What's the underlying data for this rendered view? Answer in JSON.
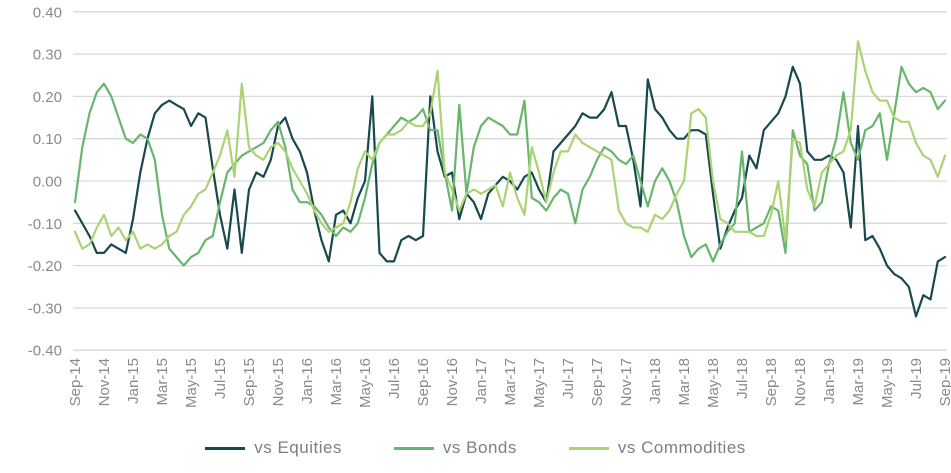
{
  "chart_data": {
    "type": "line",
    "title": "",
    "grid": "horizontal",
    "background": "#ffffff",
    "gridline_color": "#d9d9d9",
    "axis_text_color": "#8a8a8a",
    "legend_text_color": "#7f7f7f",
    "legend_position": "bottom",
    "y_axis": {
      "min": -0.4,
      "max": 0.4,
      "step": 0.1,
      "tick_labels": [
        "0.40",
        "0.30",
        "0.20",
        "0.10",
        "0.00",
        "-0.10",
        "-0.20",
        "-0.30",
        "-0.40"
      ]
    },
    "x_axis": {
      "unit": "month",
      "tick_interval_months": 2,
      "tick_labels": [
        "Sep-14",
        "Nov-14",
        "Jan-15",
        "Mar-15",
        "May-15",
        "Jul-15",
        "Sep-15",
        "Nov-15",
        "Jan-16",
        "Mar-16",
        "May-16",
        "Jul-16",
        "Sep-16",
        "Nov-16",
        "Jan-17",
        "Mar-17",
        "May-17",
        "Jul-17",
        "Sep-17",
        "Nov-17",
        "Jan-18",
        "Mar-18",
        "May-18",
        "Jul-18",
        "Sep-18",
        "Nov-18",
        "Jan-19",
        "Mar-19",
        "May-19",
        "Jul-19",
        "Sep-19"
      ]
    },
    "x_step_months": 0.5,
    "x_start_label": "Sep-14",
    "series": [
      {
        "name": "vs Equities",
        "color": "#17494d",
        "values": [
          -0.07,
          -0.1,
          -0.13,
          -0.17,
          -0.17,
          -0.15,
          -0.16,
          -0.17,
          -0.09,
          0.02,
          0.1,
          0.16,
          0.18,
          0.19,
          0.18,
          0.17,
          0.13,
          0.16,
          0.15,
          0.03,
          -0.08,
          -0.16,
          -0.02,
          -0.17,
          -0.02,
          0.02,
          0.01,
          0.05,
          0.13,
          0.15,
          0.1,
          0.07,
          0.02,
          -0.07,
          -0.14,
          -0.19,
          -0.08,
          -0.07,
          -0.1,
          -0.04,
          0.0,
          0.2,
          -0.17,
          -0.19,
          -0.19,
          -0.14,
          -0.13,
          -0.14,
          -0.13,
          0.2,
          0.07,
          0.01,
          0.02,
          -0.09,
          -0.03,
          -0.05,
          -0.09,
          -0.03,
          -0.01,
          0.01,
          0.0,
          -0.02,
          0.01,
          0.02,
          -0.02,
          -0.05,
          0.07,
          0.09,
          0.11,
          0.13,
          0.16,
          0.15,
          0.15,
          0.17,
          0.21,
          0.13,
          0.13,
          0.05,
          -0.06,
          0.24,
          0.17,
          0.15,
          0.12,
          0.1,
          0.1,
          0.12,
          0.12,
          0.11,
          -0.03,
          -0.16,
          -0.11,
          -0.07,
          -0.04,
          0.06,
          0.03,
          0.12,
          0.14,
          0.16,
          0.2,
          0.27,
          0.23,
          0.07,
          0.05,
          0.05,
          0.06,
          0.05,
          0.02,
          -0.11,
          0.13,
          -0.14,
          -0.13,
          -0.16,
          -0.2,
          -0.22,
          -0.23,
          -0.25,
          -0.32,
          -0.27,
          -0.28,
          -0.19,
          -0.18
        ]
      },
      {
        "name": "vs Bonds",
        "color": "#68b56e",
        "values": [
          -0.05,
          0.08,
          0.16,
          0.21,
          0.23,
          0.2,
          0.15,
          0.1,
          0.09,
          0.11,
          0.1,
          0.05,
          -0.08,
          -0.16,
          -0.18,
          -0.2,
          -0.18,
          -0.17,
          -0.14,
          -0.13,
          -0.05,
          0.02,
          0.04,
          0.06,
          0.07,
          0.08,
          0.09,
          0.12,
          0.14,
          0.08,
          -0.02,
          -0.05,
          -0.05,
          -0.06,
          -0.08,
          -0.11,
          -0.13,
          -0.11,
          -0.12,
          -0.1,
          -0.04,
          0.04,
          0.09,
          0.11,
          0.13,
          0.15,
          0.14,
          0.15,
          0.17,
          0.12,
          0.12,
          0.02,
          -0.07,
          0.18,
          -0.03,
          0.08,
          0.13,
          0.15,
          0.14,
          0.13,
          0.11,
          0.11,
          0.19,
          -0.04,
          -0.05,
          -0.07,
          -0.04,
          -0.02,
          -0.03,
          -0.1,
          -0.02,
          0.01,
          0.05,
          0.08,
          0.07,
          0.05,
          0.04,
          0.06,
          0.0,
          -0.06,
          0.0,
          0.03,
          0.0,
          -0.05,
          -0.13,
          -0.18,
          -0.16,
          -0.15,
          -0.19,
          -0.15,
          -0.12,
          -0.1,
          0.07,
          -0.12,
          -0.11,
          -0.1,
          -0.06,
          -0.07,
          -0.17,
          0.12,
          0.06,
          0.04,
          -0.07,
          -0.05,
          0.04,
          0.1,
          0.21,
          0.09,
          0.05,
          0.12,
          0.13,
          0.16,
          0.05,
          0.16,
          0.27,
          0.23,
          0.21,
          0.22,
          0.21,
          0.17,
          0.19
        ]
      },
      {
        "name": "vs Commodities",
        "color": "#abd373",
        "values": [
          -0.12,
          -0.16,
          -0.15,
          -0.11,
          -0.08,
          -0.13,
          -0.11,
          -0.14,
          -0.12,
          -0.16,
          -0.15,
          -0.16,
          -0.15,
          -0.13,
          -0.12,
          -0.08,
          -0.06,
          -0.03,
          -0.02,
          0.02,
          0.06,
          0.12,
          0.01,
          0.23,
          0.08,
          0.06,
          0.05,
          0.08,
          0.09,
          0.07,
          0.03,
          0.0,
          -0.03,
          -0.07,
          -0.1,
          -0.12,
          -0.11,
          -0.1,
          -0.05,
          0.03,
          0.07,
          0.05,
          0.09,
          0.11,
          0.11,
          0.12,
          0.14,
          0.13,
          0.13,
          0.16,
          0.26,
          0.02,
          -0.02,
          -0.07,
          -0.03,
          -0.02,
          -0.03,
          -0.02,
          -0.01,
          -0.06,
          0.02,
          -0.04,
          -0.08,
          0.08,
          0.02,
          -0.05,
          0.02,
          0.07,
          0.07,
          0.11,
          0.09,
          0.08,
          0.07,
          0.06,
          0.05,
          -0.07,
          -0.1,
          -0.11,
          -0.11,
          -0.12,
          -0.08,
          -0.09,
          -0.07,
          -0.03,
          0.0,
          0.16,
          0.17,
          0.15,
          0.0,
          -0.09,
          -0.1,
          -0.12,
          -0.12,
          -0.12,
          -0.13,
          -0.13,
          -0.08,
          0.0,
          -0.14,
          0.1,
          0.09,
          -0.02,
          -0.06,
          0.02,
          0.04,
          0.06,
          0.07,
          0.12,
          0.33,
          0.26,
          0.21,
          0.19,
          0.19,
          0.15,
          0.14,
          0.14,
          0.09,
          0.06,
          0.05,
          0.01,
          0.06
        ]
      }
    ]
  }
}
